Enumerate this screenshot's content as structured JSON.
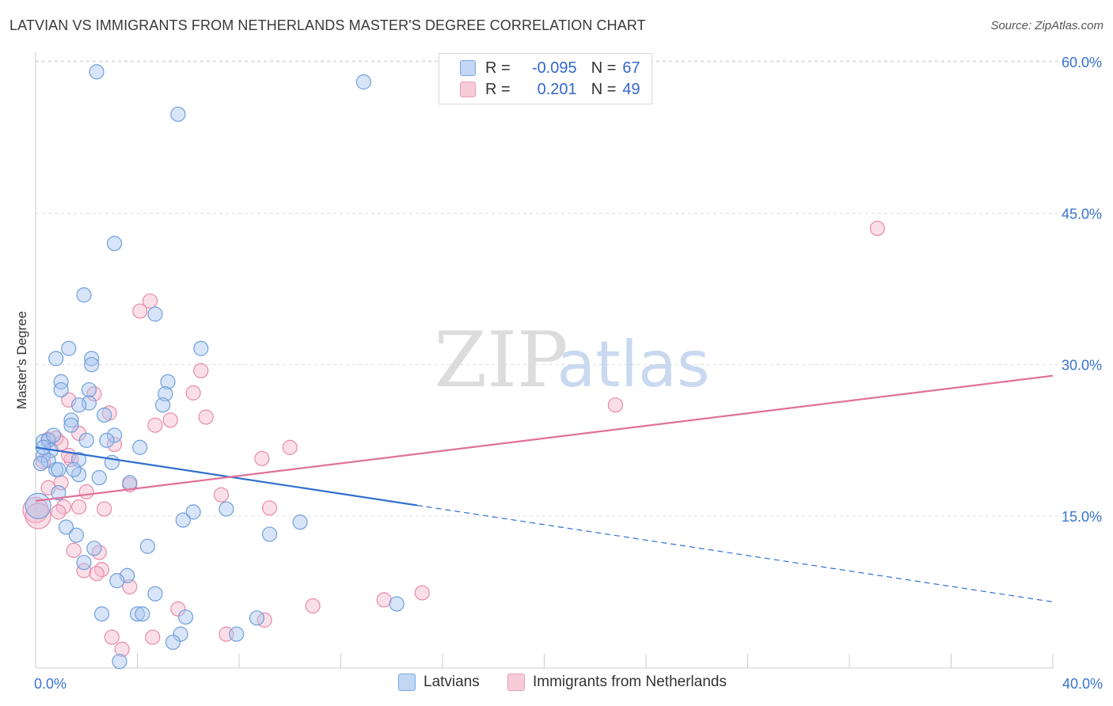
{
  "header": {
    "title": "LATVIAN VS IMMIGRANTS FROM NETHERLANDS MASTER'S DEGREE CORRELATION CHART",
    "source": "Source: ZipAtlas.com"
  },
  "watermark": {
    "zip": "ZIP",
    "atlas": "atlas"
  },
  "legend": {
    "r_label": "R =",
    "n_label": "N =",
    "series": [
      {
        "r": "-0.095",
        "n": "67"
      },
      {
        "r": "0.201",
        "n": "49"
      }
    ]
  },
  "colors": {
    "blue_fill": "#a9c6f0",
    "blue_stroke": "#6f9fdc",
    "blue_line": "#2f6fcf",
    "pink_fill": "#f5b8cb",
    "pink_stroke": "#e98aa8",
    "pink_line": "#e0719a",
    "tick_label": "#3a74d0"
  },
  "chart_data": {
    "type": "scatter",
    "title": "LATVIAN VS IMMIGRANTS FROM NETHERLANDS MASTER'S DEGREE CORRELATION CHART",
    "xlabel": "",
    "ylabel": "Master's Degree",
    "xlim": [
      0,
      40
    ],
    "ylim": [
      0,
      61
    ],
    "x_tick_labels": [
      "0.0%",
      "40.0%"
    ],
    "y_ticks": [
      15,
      30,
      45,
      60
    ],
    "y_tick_labels": [
      "15.0%",
      "30.0%",
      "45.0%",
      "60.0%"
    ],
    "grid": true,
    "legend_position": "top-center",
    "series": [
      {
        "name": "Latvians",
        "color": "#a9c6f0",
        "points": [
          [
            2.4,
            59.0
          ],
          [
            12.9,
            58.0
          ],
          [
            5.6,
            54.8
          ],
          [
            3.1,
            42.0
          ],
          [
            1.9,
            36.9
          ],
          [
            4.7,
            35.0
          ],
          [
            6.5,
            31.6
          ],
          [
            1.3,
            31.6
          ],
          [
            0.8,
            30.6
          ],
          [
            2.2,
            30.6
          ],
          [
            2.2,
            30.0
          ],
          [
            5.2,
            28.3
          ],
          [
            1.0,
            28.3
          ],
          [
            1.0,
            27.5
          ],
          [
            2.1,
            27.5
          ],
          [
            5.1,
            27.1
          ],
          [
            2.1,
            26.2
          ],
          [
            1.7,
            26.0
          ],
          [
            5.0,
            26.0
          ],
          [
            2.7,
            25.0
          ],
          [
            1.4,
            24.5
          ],
          [
            1.4,
            24.0
          ],
          [
            0.3,
            22.4
          ],
          [
            0.5,
            22.5
          ],
          [
            3.1,
            23.0
          ],
          [
            2.8,
            22.5
          ],
          [
            4.1,
            21.8
          ],
          [
            0.6,
            21.5
          ],
          [
            0.3,
            21.0
          ],
          [
            0.5,
            20.5
          ],
          [
            3.0,
            20.3
          ],
          [
            1.7,
            20.6
          ],
          [
            0.2,
            20.2
          ],
          [
            0.8,
            19.6
          ],
          [
            0.9,
            19.6
          ],
          [
            1.7,
            19.1
          ],
          [
            2.5,
            18.8
          ],
          [
            3.7,
            18.3
          ],
          [
            0.9,
            17.3
          ],
          [
            7.5,
            15.7
          ],
          [
            6.2,
            15.4
          ],
          [
            10.4,
            14.4
          ],
          [
            5.8,
            14.6
          ],
          [
            1.2,
            13.9
          ],
          [
            9.2,
            13.2
          ],
          [
            1.6,
            13.1
          ],
          [
            2.3,
            11.8
          ],
          [
            4.4,
            12.0
          ],
          [
            1.9,
            10.4
          ],
          [
            3.6,
            9.1
          ],
          [
            3.2,
            8.6
          ],
          [
            4.7,
            7.3
          ],
          [
            14.2,
            6.3
          ],
          [
            2.6,
            5.3
          ],
          [
            4.0,
            5.3
          ],
          [
            4.2,
            5.3
          ],
          [
            5.9,
            5.0
          ],
          [
            8.7,
            4.9
          ],
          [
            5.7,
            3.3
          ],
          [
            7.9,
            3.3
          ],
          [
            5.4,
            2.5
          ],
          [
            3.3,
            0.6
          ],
          [
            0.1,
            16.0
          ],
          [
            0.3,
            21.8
          ],
          [
            0.7,
            23.0
          ],
          [
            1.5,
            19.6
          ],
          [
            2.0,
            22.5
          ]
        ]
      },
      {
        "name": "Immigrants from Netherlands",
        "color": "#f5b8cb",
        "points": [
          [
            33.1,
            43.5
          ],
          [
            4.5,
            36.3
          ],
          [
            4.1,
            35.3
          ],
          [
            6.5,
            29.4
          ],
          [
            6.2,
            27.2
          ],
          [
            2.3,
            27.1
          ],
          [
            1.3,
            26.5
          ],
          [
            22.8,
            26.0
          ],
          [
            2.9,
            25.2
          ],
          [
            6.7,
            24.8
          ],
          [
            5.3,
            24.5
          ],
          [
            4.7,
            24.0
          ],
          [
            1.7,
            23.2
          ],
          [
            0.5,
            22.6
          ],
          [
            0.8,
            22.7
          ],
          [
            1.0,
            22.2
          ],
          [
            3.1,
            22.1
          ],
          [
            10.0,
            21.8
          ],
          [
            8.9,
            20.7
          ],
          [
            1.4,
            20.6
          ],
          [
            0.3,
            20.4
          ],
          [
            1.0,
            18.3
          ],
          [
            3.7,
            18.1
          ],
          [
            2.0,
            17.4
          ],
          [
            7.3,
            17.1
          ],
          [
            1.1,
            15.9
          ],
          [
            1.7,
            15.9
          ],
          [
            2.7,
            15.7
          ],
          [
            9.2,
            15.8
          ],
          [
            0.9,
            15.4
          ],
          [
            0.0,
            15.6
          ],
          [
            1.5,
            11.6
          ],
          [
            2.5,
            11.4
          ],
          [
            2.6,
            9.7
          ],
          [
            1.9,
            9.6
          ],
          [
            2.4,
            9.3
          ],
          [
            3.7,
            8.0
          ],
          [
            15.2,
            7.4
          ],
          [
            13.7,
            6.7
          ],
          [
            10.9,
            6.1
          ],
          [
            5.6,
            5.8
          ],
          [
            9.0,
            4.7
          ],
          [
            7.5,
            3.3
          ],
          [
            3.0,
            3.0
          ],
          [
            4.6,
            3.0
          ],
          [
            3.4,
            1.8
          ],
          [
            0.1,
            15.0
          ],
          [
            0.5,
            17.8
          ],
          [
            1.3,
            21.0
          ]
        ]
      }
    ],
    "trendlines": [
      {
        "series": "Latvians",
        "x_start": 0,
        "y_start": 21.8,
        "x_solid_end": 15,
        "x_end": 40,
        "y_end": 6.5
      },
      {
        "series": "Immigrants from Netherlands",
        "x_start": 0,
        "y_start": 16.5,
        "x_end": 40,
        "y_end": 28.9
      }
    ]
  },
  "bottom_legend": {
    "items": [
      "Latvians",
      "Immigrants from Netherlands"
    ]
  }
}
